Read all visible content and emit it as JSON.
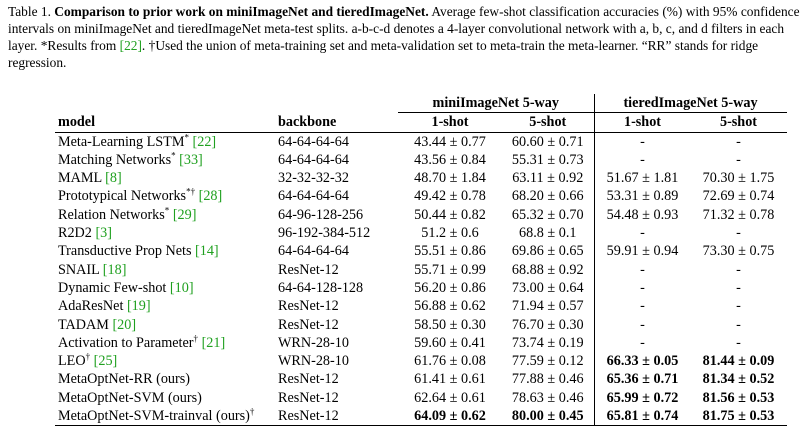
{
  "caption": {
    "label": "Table 1.",
    "title": "Comparison to prior work on miniImageNet and tieredImageNet.",
    "line1_rest": "Average few-shot classification accuracies (%) with 95%",
    "line2": "confidence intervals on miniImageNet and tieredImageNet meta-test splits. a-b-c-d denotes a 4-layer convolutional network with a, b, c,",
    "line3_pre": "and d filters in each layer.",
    "line3_star": "*Results from",
    "ref_22": "[22]",
    "line3_dagger": ". †Used the union of meta-training set and meta-validation set to meta-train the meta-learner.",
    "line4": "“RR” stands for ridge regression."
  },
  "table": {
    "group_headers": [
      "miniImageNet 5-way",
      "tieredImageNet 5-way"
    ],
    "headers": [
      "model",
      "backbone",
      "1-shot",
      "5-shot",
      "1-shot",
      "5-shot"
    ],
    "rows": [
      {
        "name": "Meta-Learning LSTM",
        "mark": "*",
        "ref": "[22]",
        "backbone": "64-64-64-64",
        "m1": "43.44 ± 0.77",
        "m5": "60.60 ± 0.71",
        "t1": "-",
        "t5": "-"
      },
      {
        "name": "Matching Networks",
        "mark": "*",
        "ref": "[33]",
        "backbone": "64-64-64-64",
        "m1": "43.56 ± 0.84",
        "m5": "55.31 ± 0.73",
        "t1": "-",
        "t5": "-"
      },
      {
        "name": "MAML",
        "mark": "",
        "ref": "[8]",
        "backbone": "32-32-32-32",
        "m1": "48.70 ± 1.84",
        "m5": "63.11 ± 0.92",
        "t1": "51.67 ± 1.81",
        "t5": "70.30 ± 1.75"
      },
      {
        "name": "Prototypical Networks",
        "mark": "*†",
        "ref": "[28]",
        "backbone": "64-64-64-64",
        "m1": "49.42 ± 0.78",
        "m5": "68.20 ± 0.66",
        "t1": "53.31 ± 0.89",
        "t5": "72.69 ± 0.74"
      },
      {
        "name": "Relation Networks",
        "mark": "*",
        "ref": "[29]",
        "backbone": "64-96-128-256",
        "m1": "50.44 ± 0.82",
        "m5": "65.32 ± 0.70",
        "t1": "54.48 ± 0.93",
        "t5": "71.32 ± 0.78"
      },
      {
        "name": "R2D2",
        "mark": "",
        "ref": "[3]",
        "backbone": "96-192-384-512",
        "m1": "51.2 ± 0.6",
        "m5": "68.8 ± 0.1",
        "t1": "-",
        "t5": "-"
      },
      {
        "name": "Transductive Prop Nets",
        "mark": "",
        "ref": "[14]",
        "backbone": "64-64-64-64",
        "m1": "55.51 ± 0.86",
        "m5": "69.86 ± 0.65",
        "t1": "59.91 ± 0.94",
        "t5": "73.30 ± 0.75"
      },
      {
        "name": "SNAIL",
        "mark": "",
        "ref": "[18]",
        "backbone": "ResNet-12",
        "m1": "55.71 ± 0.99",
        "m5": "68.88 ± 0.92",
        "t1": "-",
        "t5": "-"
      },
      {
        "name": "Dynamic Few-shot",
        "mark": "",
        "ref": "[10]",
        "backbone": "64-64-128-128",
        "m1": "56.20 ± 0.86",
        "m5": "73.00 ± 0.64",
        "t1": "-",
        "t5": "-"
      },
      {
        "name": "AdaResNet",
        "mark": "",
        "ref": "[19]",
        "backbone": "ResNet-12",
        "m1": "56.88 ± 0.62",
        "m5": "71.94 ± 0.57",
        "t1": "-",
        "t5": "-"
      },
      {
        "name": "TADAM",
        "mark": "",
        "ref": "[20]",
        "backbone": "ResNet-12",
        "m1": "58.50 ± 0.30",
        "m5": "76.70 ± 0.30",
        "t1": "-",
        "t5": "-"
      },
      {
        "name": "Activation to Parameter",
        "mark": "†",
        "ref": "[21]",
        "backbone": "WRN-28-10",
        "m1": "59.60 ± 0.41",
        "m5": "73.74 ± 0.19",
        "t1": "-",
        "t5": "-"
      },
      {
        "name": "LEO",
        "mark": "†",
        "ref": "[25]",
        "backbone": "WRN-28-10",
        "m1": "61.76 ± 0.08",
        "m5": "77.59 ± 0.12",
        "t1": "66.33 ± 0.05",
        "t5": "81.44 ± 0.09",
        "bold": [
          "t1",
          "t5"
        ]
      },
      {
        "name": "MetaOptNet-RR (ours)",
        "mark": "",
        "ref": "",
        "backbone": "ResNet-12",
        "m1": "61.41 ± 0.61",
        "m5": "77.88 ± 0.46",
        "t1": "65.36 ± 0.71",
        "t5": "81.34 ± 0.52",
        "bold": [
          "t1",
          "t5"
        ]
      },
      {
        "name": "MetaOptNet-SVM (ours)",
        "mark": "",
        "ref": "",
        "backbone": "ResNet-12",
        "m1": "62.64 ± 0.61",
        "m5": "78.63 ± 0.46",
        "t1": "65.99 ± 0.72",
        "t5": "81.56 ± 0.53",
        "bold": [
          "t1",
          "t5"
        ]
      },
      {
        "name": "MetaOptNet-SVM-trainval (ours)",
        "mark": "†",
        "ref": "",
        "backbone": "ResNet-12",
        "m1": "64.09 ± 0.62",
        "m5": "80.00 ± 0.45",
        "t1": "65.81 ± 0.74",
        "t5": "81.75 ± 0.53",
        "bold": [
          "m1",
          "m5",
          "t1",
          "t5"
        ]
      }
    ]
  }
}
